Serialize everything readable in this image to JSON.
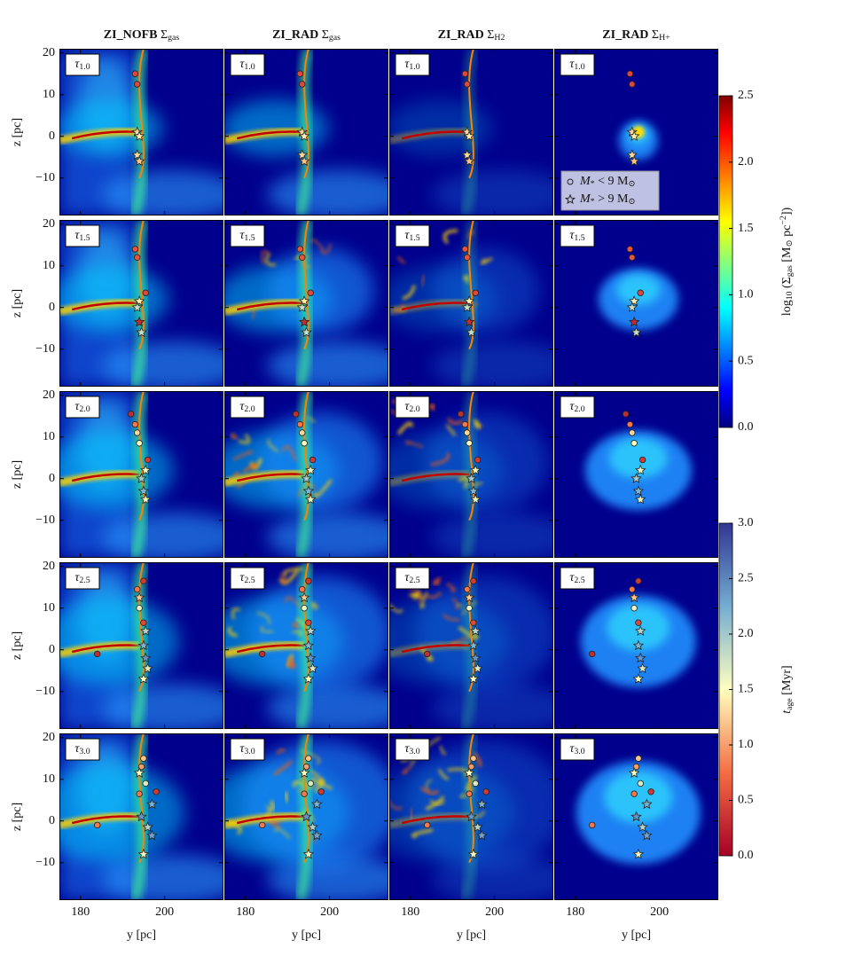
{
  "chart_data": {
    "type": "image-grid",
    "columns": [
      {
        "title": [
          [
            "ZI_NOFB ",
            "b"
          ],
          [
            "Σ",
            ""
          ],
          [
            "gas",
            "sub"
          ]
        ]
      },
      {
        "title": [
          [
            "ZI_RAD ",
            "b"
          ],
          [
            "Σ",
            ""
          ],
          [
            "gas",
            "sub"
          ]
        ]
      },
      {
        "title": [
          [
            "ZI_RAD ",
            "b"
          ],
          [
            "Σ",
            ""
          ],
          [
            "H2",
            "sub"
          ]
        ]
      },
      {
        "title": [
          [
            "ZI_RAD ",
            "b"
          ],
          [
            "Σ",
            ""
          ],
          [
            "H+",
            "sub"
          ]
        ]
      }
    ],
    "rows": [
      {
        "label": [
          [
            "τ",
            "i"
          ],
          [
            "1.0",
            "sub"
          ]
        ],
        "particles": [
          [
            193,
            15,
            0.5,
            "o"
          ],
          [
            193.5,
            12.5,
            0.5,
            "o"
          ],
          [
            193.5,
            1,
            1.3,
            "*"
          ],
          [
            194,
            0,
            1.4,
            "*"
          ],
          [
            193.5,
            -4.5,
            1.3,
            "*"
          ],
          [
            194,
            -6,
            1.2,
            "*"
          ]
        ]
      },
      {
        "label": [
          [
            "τ",
            "i"
          ],
          [
            "1.5",
            "sub"
          ]
        ],
        "particles": [
          [
            193,
            14,
            0.6,
            "o"
          ],
          [
            193.5,
            12,
            0.6,
            "o"
          ],
          [
            195.5,
            3.5,
            0.5,
            "o"
          ],
          [
            194,
            1.5,
            1.4,
            "*"
          ],
          [
            193.5,
            0,
            1.8,
            "*"
          ],
          [
            194,
            -3.5,
            0.3,
            "*"
          ],
          [
            194.5,
            -6,
            1.8,
            "*"
          ]
        ]
      },
      {
        "label": [
          [
            "τ",
            "i"
          ],
          [
            "2.0",
            "sub"
          ]
        ],
        "particles": [
          [
            192,
            15.5,
            0.3,
            "o"
          ],
          [
            193,
            13,
            0.8,
            "o"
          ],
          [
            193.5,
            11,
            1.3,
            "o"
          ],
          [
            194,
            8.5,
            1.5,
            "o"
          ],
          [
            196,
            4.5,
            0.4,
            "o"
          ],
          [
            195.5,
            2,
            1.6,
            "*"
          ],
          [
            194.5,
            0,
            2.0,
            "*"
          ],
          [
            195,
            -3,
            2.2,
            "*"
          ],
          [
            195.5,
            -5,
            1.6,
            "*"
          ]
        ]
      },
      {
        "label": [
          [
            "τ",
            "i"
          ],
          [
            "2.5",
            "sub"
          ]
        ],
        "particles": [
          [
            195,
            16.5,
            0.4,
            "o"
          ],
          [
            193.5,
            14.5,
            0.8,
            "o"
          ],
          [
            194,
            12.5,
            1.2,
            "*"
          ],
          [
            194,
            10,
            1.6,
            "o"
          ],
          [
            195,
            6.5,
            0.5,
            "o"
          ],
          [
            195.5,
            4.5,
            1.9,
            "*"
          ],
          [
            195,
            1,
            2.2,
            "*"
          ],
          [
            195.5,
            -2,
            2.4,
            "*"
          ],
          [
            196,
            -4.5,
            1.7,
            "*"
          ],
          [
            195,
            -7,
            1.5,
            "*"
          ],
          [
            184,
            -1,
            0.3,
            "o"
          ]
        ]
      },
      {
        "label": [
          [
            "τ",
            "i"
          ],
          [
            "3.0",
            "sub"
          ]
        ],
        "particles": [
          [
            195,
            15,
            1.2,
            "o"
          ],
          [
            194.5,
            13,
            1.0,
            "o"
          ],
          [
            194,
            11.5,
            1.5,
            "*"
          ],
          [
            195.5,
            9,
            1.7,
            "o"
          ],
          [
            198,
            7,
            0.4,
            "o"
          ],
          [
            194,
            6.5,
            0.8,
            "o"
          ],
          [
            197,
            4,
            2.2,
            "*"
          ],
          [
            194.5,
            1,
            2.4,
            "*"
          ],
          [
            196,
            -1.5,
            1.9,
            "*"
          ],
          [
            197,
            -3.5,
            2.3,
            "*"
          ],
          [
            195,
            -8,
            1.6,
            "*"
          ],
          [
            184,
            -1,
            0.8,
            "o"
          ]
        ]
      }
    ],
    "x_label": [
      [
        "y [pc]",
        ""
      ]
    ],
    "y_label": [
      [
        "z [pc]",
        ""
      ]
    ],
    "xlim": [
      175,
      214
    ],
    "xticks": [
      180,
      200
    ],
    "ylim": [
      -19,
      21
    ],
    "yticks": [
      {
        "value": -10,
        "label": "−10"
      },
      0,
      10,
      20
    ],
    "legend_corner": "lower left",
    "legend": [
      {
        "marker": "o",
        "label": [
          [
            "M",
            "i"
          ],
          [
            "*",
            "sub"
          ],
          [
            " < 9 M",
            ""
          ],
          [
            "⊙",
            "sub"
          ]
        ]
      },
      {
        "marker": "*",
        "label": [
          [
            "M",
            "i"
          ],
          [
            "*",
            "sub"
          ],
          [
            " > 9 M",
            ""
          ],
          [
            "⊙",
            "sub"
          ]
        ]
      }
    ],
    "colorbars": [
      {
        "label": [
          [
            "log",
            ""
          ],
          [
            "10",
            "sub"
          ],
          [
            " (Σ",
            ""
          ],
          [
            "gas",
            "sub"
          ],
          [
            " [M",
            ""
          ],
          [
            "⊙",
            "sub"
          ],
          [
            " pc",
            ""
          ],
          [
            "−2",
            "sup"
          ],
          [
            "])",
            ""
          ]
        ],
        "colormap": "jet",
        "lim": [
          0,
          2.5
        ],
        "ticks": [
          {
            "value": 0,
            "label": "0.0"
          },
          {
            "value": 0.5,
            "label": "0.5"
          },
          {
            "value": 1,
            "label": "1.0"
          },
          {
            "value": 1.5,
            "label": "1.5"
          },
          {
            "value": 2,
            "label": "2.0"
          },
          {
            "value": 2.5,
            "label": "2.5"
          }
        ]
      },
      {
        "label": [
          [
            "t",
            "i"
          ],
          [
            "age",
            "sub"
          ],
          [
            " [Myr]",
            ""
          ]
        ],
        "colormap": "RdYlBu",
        "lim": [
          0,
          3
        ],
        "ticks": [
          {
            "value": 0,
            "label": "0.0"
          },
          {
            "value": 0.5,
            "label": "0.5"
          },
          {
            "value": 1,
            "label": "1.0"
          },
          {
            "value": 1.5,
            "label": "1.5"
          },
          {
            "value": 2,
            "label": "2.0"
          },
          {
            "value": 2.5,
            "label": "2.5"
          },
          {
            "value": 3,
            "label": "3.0"
          }
        ]
      }
    ]
  }
}
